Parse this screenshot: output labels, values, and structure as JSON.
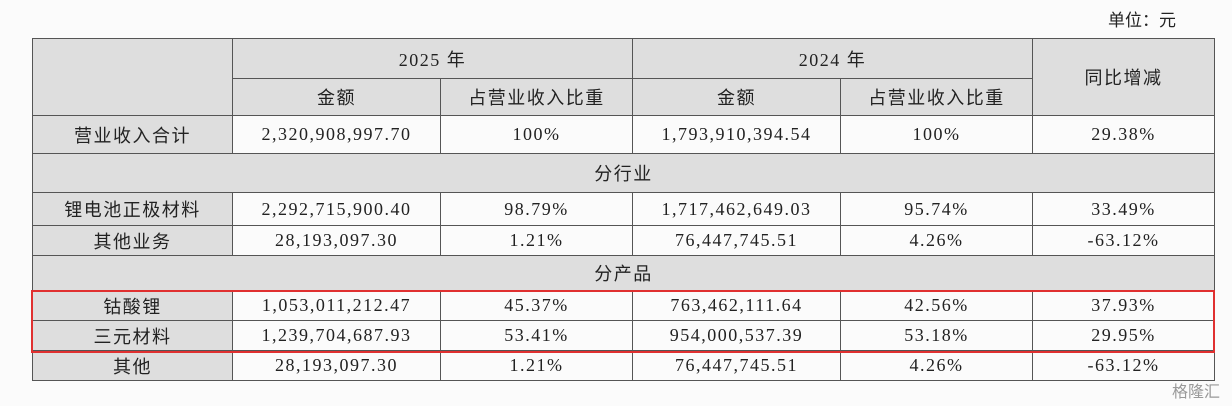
{
  "unit": "单位：元",
  "header": {
    "years": [
      "2025 年",
      "2024 年"
    ],
    "change": "同比增减",
    "sub": [
      "金额",
      "占营业收入比重",
      "金额",
      "占营业收入比重"
    ]
  },
  "rows": [
    {
      "label": "营业收入合计",
      "cells": [
        "2,320,908,997.70",
        "100%",
        "1,793,910,394.54",
        "100%",
        "29.38%"
      ]
    },
    {
      "section": "分行业"
    },
    {
      "label": "锂电池正极材料",
      "cells": [
        "2,292,715,900.40",
        "98.79%",
        "1,717,462,649.03",
        "95.74%",
        "33.49%"
      ]
    },
    {
      "label": "其他业务",
      "cells": [
        "28,193,097.30",
        "1.21%",
        "76,447,745.51",
        "4.26%",
        "-63.12%"
      ]
    },
    {
      "section": "分产品"
    },
    {
      "label": "钴酸锂",
      "cells": [
        "1,053,011,212.47",
        "45.37%",
        "763,462,111.64",
        "42.56%",
        "37.93%"
      ]
    },
    {
      "label": "三元材料",
      "cells": [
        "1,239,704,687.93",
        "53.41%",
        "954,000,537.39",
        "53.18%",
        "29.95%"
      ]
    },
    {
      "label": "其他",
      "cells": [
        "28,193,097.30",
        "1.21%",
        "76,447,745.51",
        "4.26%",
        "-63.12%"
      ]
    }
  ],
  "watermark": "格隆汇"
}
